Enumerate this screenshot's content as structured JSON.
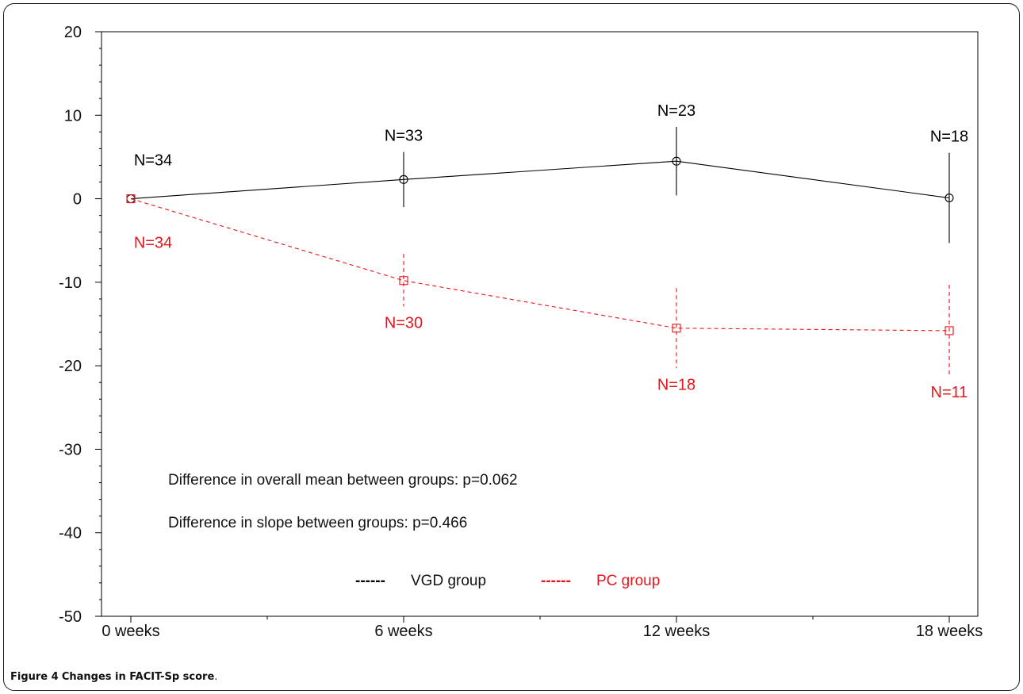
{
  "figure": {
    "label": "Figure 4",
    "caption": "Changes in FACIT-Sp score",
    "caption_end": "."
  },
  "chart_data": {
    "type": "line",
    "title": "",
    "xlabel": "",
    "ylabel": "",
    "categories": [
      "0 weeks",
      "6 weeks",
      "12 weeks",
      "18 weeks"
    ],
    "ylim": [
      -50,
      20
    ],
    "yticks": [
      20,
      10,
      0,
      -10,
      -20,
      -30,
      -40,
      -50
    ],
    "grid": false,
    "series": [
      {
        "name": "VGD group",
        "color": "#000000",
        "linestyle": "solid",
        "marker": "circle",
        "values": [
          0,
          2.3,
          4.5,
          0.1
        ],
        "err_low": [
          0,
          -1.0,
          0.4,
          -5.3
        ],
        "err_high": [
          0,
          5.6,
          8.6,
          5.5
        ],
        "n_labels": [
          "N=34",
          "N=33",
          "N=23",
          "N=18"
        ]
      },
      {
        "name": "PC group",
        "color": "#e8141b",
        "linestyle": "dashed",
        "marker": "square",
        "values": [
          0,
          -9.8,
          -15.5,
          -15.8
        ],
        "err_low": [
          0,
          -12.9,
          -20.3,
          -21.2
        ],
        "err_high": [
          0,
          -6.6,
          -10.7,
          -10.3
        ],
        "n_labels": [
          "N=34",
          "N=30",
          "N=18",
          "N=11"
        ]
      }
    ],
    "annotations": [
      "Difference in overall mean between groups: p=0.062",
      "Difference in slope between groups: p=0.466"
    ],
    "legend": {
      "placement": "bottom-center",
      "entries": [
        {
          "swatch": "------",
          "label": "VGD group",
          "color": "#000000"
        },
        {
          "swatch": "------",
          "label": "PC group",
          "color": "#e8141b"
        }
      ]
    }
  }
}
